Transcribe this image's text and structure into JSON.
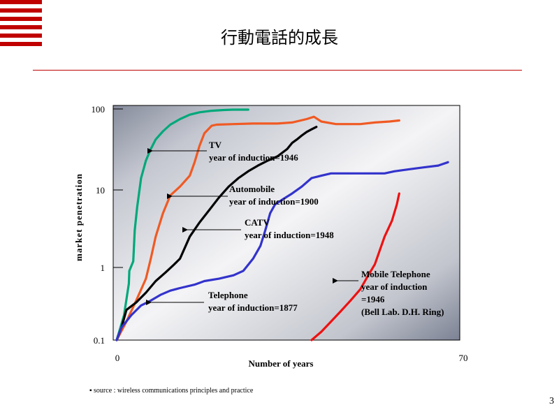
{
  "slide": {
    "title": "行動電話的成長",
    "source_note": "▪ source : wireless communications principles and practice",
    "page_number": "3",
    "colors": {
      "accent": "#c00000"
    }
  },
  "chart_data": {
    "type": "line",
    "title": "",
    "xlabel": "Number of years",
    "ylabel": "market penetration",
    "xlim": [
      0,
      70
    ],
    "ylim": [
      0.1,
      100
    ],
    "yscale": "log",
    "x_tick_labels": [
      "0",
      "70"
    ],
    "y_tick_labels": [
      "100",
      "10",
      "1",
      "0.1"
    ],
    "y_ticks": [
      100,
      10,
      1,
      0.1
    ],
    "series": [
      {
        "name": "TV",
        "annotation": [
          "TV",
          "year of induction=1946"
        ],
        "color": "#00a87a",
        "points": [
          [
            0,
            0.1
          ],
          [
            1.5,
            0.22
          ],
          [
            2.5,
            0.6
          ],
          [
            2.6,
            0.9
          ],
          [
            3.4,
            1.2
          ],
          [
            3.7,
            3
          ],
          [
            4.2,
            6
          ],
          [
            5,
            14
          ],
          [
            6,
            23
          ],
          [
            7,
            32
          ],
          [
            8,
            42
          ],
          [
            9.5,
            53
          ],
          [
            11,
            64
          ],
          [
            13,
            75
          ],
          [
            15,
            85
          ],
          [
            17,
            91
          ],
          [
            19.5,
            95
          ],
          [
            22,
            97
          ],
          [
            24,
            98
          ],
          [
            27,
            98
          ]
        ]
      },
      {
        "name": "Automobile",
        "annotation": [
          "Automobile",
          "year of induction=1900"
        ],
        "color": "#f05a23",
        "points": [
          [
            0,
            0.1
          ],
          [
            2,
            0.18
          ],
          [
            4,
            0.35
          ],
          [
            6,
            0.7
          ],
          [
            7,
            1.3
          ],
          [
            8,
            2.5
          ],
          [
            9.5,
            5
          ],
          [
            11,
            8.5
          ],
          [
            13,
            11
          ],
          [
            15,
            15
          ],
          [
            16,
            22
          ],
          [
            17,
            35
          ],
          [
            18,
            50
          ],
          [
            19.5,
            62
          ],
          [
            20.5,
            64
          ],
          [
            24,
            65
          ],
          [
            28,
            66
          ],
          [
            33,
            66
          ],
          [
            36,
            68
          ],
          [
            39,
            75
          ],
          [
            40.5,
            80
          ],
          [
            42,
            70
          ],
          [
            45,
            65
          ],
          [
            50,
            65
          ],
          [
            53,
            68
          ],
          [
            56,
            70
          ],
          [
            58,
            72
          ]
        ]
      },
      {
        "name": "CATV",
        "annotation": [
          "CATV",
          "year of induction=1948"
        ],
        "color": "#000000",
        "points": [
          [
            0,
            0.1
          ],
          [
            1,
            0.15
          ],
          [
            2,
            0.26
          ],
          [
            4,
            0.33
          ],
          [
            6,
            0.45
          ],
          [
            8,
            0.65
          ],
          [
            10,
            0.85
          ],
          [
            11.5,
            1.05
          ],
          [
            13,
            1.3
          ],
          [
            15,
            2.5
          ],
          [
            17,
            3.8
          ],
          [
            19,
            5.5
          ],
          [
            21,
            8
          ],
          [
            23,
            11
          ],
          [
            25,
            14
          ],
          [
            27,
            17
          ],
          [
            29,
            20
          ],
          [
            31,
            23
          ],
          [
            33,
            26
          ],
          [
            35,
            32
          ],
          [
            36,
            38
          ],
          [
            37,
            42
          ],
          [
            38,
            47
          ],
          [
            39,
            52
          ],
          [
            40,
            56
          ],
          [
            41,
            60
          ]
        ]
      },
      {
        "name": "Telephone",
        "annotation": [
          "Telephone",
          "year of induction=1877"
        ],
        "color": "#3333cc",
        "points": [
          [
            0,
            0.1
          ],
          [
            1,
            0.15
          ],
          [
            3,
            0.22
          ],
          [
            5,
            0.3
          ],
          [
            7,
            0.35
          ],
          [
            9,
            0.42
          ],
          [
            11,
            0.48
          ],
          [
            13,
            0.52
          ],
          [
            16,
            0.58
          ],
          [
            18,
            0.65
          ],
          [
            21,
            0.7
          ],
          [
            24,
            0.78
          ],
          [
            26,
            0.9
          ],
          [
            28,
            1.3
          ],
          [
            29.5,
            1.9
          ],
          [
            30.5,
            3
          ],
          [
            31.5,
            5
          ],
          [
            32.5,
            6.5
          ],
          [
            34,
            7.5
          ],
          [
            36,
            9
          ],
          [
            38,
            11
          ],
          [
            40,
            14
          ],
          [
            42,
            15
          ],
          [
            44,
            16
          ],
          [
            46,
            16
          ],
          [
            48,
            16
          ],
          [
            51,
            16
          ],
          [
            55,
            16
          ],
          [
            57,
            17
          ],
          [
            60,
            18
          ],
          [
            63,
            19
          ],
          [
            66,
            20
          ],
          [
            68,
            22
          ]
        ]
      },
      {
        "name": "Mobile Telephone",
        "annotation": [
          "Mobile Telephone",
          "year of induction",
          "=1946",
          "(Bell Lab. D.H. Ring)"
        ],
        "color": "#ee1111",
        "points": [
          [
            40,
            0.1
          ],
          [
            42,
            0.13
          ],
          [
            44,
            0.18
          ],
          [
            46,
            0.25
          ],
          [
            48,
            0.35
          ],
          [
            50,
            0.5
          ],
          [
            51.5,
            0.75
          ],
          [
            53,
            1.1
          ],
          [
            55,
            2.5
          ],
          [
            56.5,
            4
          ],
          [
            57.5,
            6.5
          ],
          [
            58,
            9
          ]
        ]
      }
    ]
  }
}
